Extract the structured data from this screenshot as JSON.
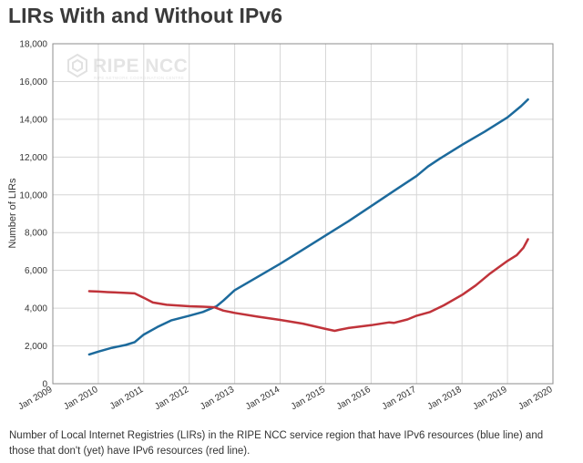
{
  "title": "LIRs With and Without IPv6",
  "caption": "Number of Local Internet Registries (LIRs) in the RIPE NCC service region that have IPv6 resources (blue line) and those that don't (yet) have IPv6 resources (red line).",
  "watermark": {
    "name": "RIPE NCC",
    "tagline": "RIPE NETWORK COORDINATION CENTRE"
  },
  "chart_data": {
    "type": "line",
    "ylabel": "Number of LIRs",
    "xlabel": "",
    "ylim": [
      0,
      18000
    ],
    "yticks": [
      0,
      2000,
      4000,
      6000,
      8000,
      10000,
      12000,
      14000,
      16000,
      18000
    ],
    "ytick_labels": [
      "0",
      "2,000",
      "4,000",
      "6,000",
      "8,000",
      "10,000",
      "12,000",
      "14,000",
      "16,000",
      "18,000"
    ],
    "xlim": [
      2009,
      2020
    ],
    "xticks": [
      2009,
      2010,
      2011,
      2012,
      2013,
      2014,
      2015,
      2016,
      2017,
      2018,
      2019,
      2020
    ],
    "xtick_labels": [
      "Jan 2009",
      "Jan 2010",
      "Jan 2011",
      "Jan 2012",
      "Jan 2013",
      "Jan 2014",
      "Jan 2015",
      "Jan 2016",
      "Jan 2017",
      "Jan 2018",
      "Jan 2019",
      "Jan 2020"
    ],
    "grid": {
      "x": true,
      "y": true
    },
    "series": [
      {
        "color": "#1c6a9c",
        "points": [
          [
            2009.8,
            1550
          ],
          [
            2010.0,
            1700
          ],
          [
            2010.3,
            1900
          ],
          [
            2010.6,
            2050
          ],
          [
            2010.8,
            2200
          ],
          [
            2011.0,
            2600
          ],
          [
            2011.3,
            3000
          ],
          [
            2011.6,
            3350
          ],
          [
            2012.0,
            3600
          ],
          [
            2012.3,
            3800
          ],
          [
            2012.6,
            4100
          ],
          [
            2012.75,
            4400
          ],
          [
            2013.0,
            4950
          ],
          [
            2013.5,
            5650
          ],
          [
            2014.0,
            6350
          ],
          [
            2014.5,
            7100
          ],
          [
            2015.0,
            7850
          ],
          [
            2015.5,
            8600
          ],
          [
            2016.0,
            9400
          ],
          [
            2016.5,
            10200
          ],
          [
            2017.0,
            11000
          ],
          [
            2017.25,
            11500
          ],
          [
            2017.5,
            11900
          ],
          [
            2018.0,
            12650
          ],
          [
            2018.5,
            13350
          ],
          [
            2019.0,
            14100
          ],
          [
            2019.3,
            14700
          ],
          [
            2019.45,
            15050
          ]
        ]
      },
      {
        "color": "#c0333a",
        "points": [
          [
            2009.8,
            4900
          ],
          [
            2010.0,
            4880
          ],
          [
            2010.2,
            4850
          ],
          [
            2010.5,
            4820
          ],
          [
            2010.8,
            4780
          ],
          [
            2011.0,
            4550
          ],
          [
            2011.2,
            4300
          ],
          [
            2011.5,
            4180
          ],
          [
            2012.0,
            4100
          ],
          [
            2012.3,
            4080
          ],
          [
            2012.55,
            4050
          ],
          [
            2012.75,
            3870
          ],
          [
            2013.0,
            3750
          ],
          [
            2013.5,
            3550
          ],
          [
            2014.0,
            3380
          ],
          [
            2014.5,
            3180
          ],
          [
            2015.0,
            2900
          ],
          [
            2015.2,
            2800
          ],
          [
            2015.3,
            2850
          ],
          [
            2015.5,
            2950
          ],
          [
            2016.0,
            3100
          ],
          [
            2016.4,
            3250
          ],
          [
            2016.5,
            3220
          ],
          [
            2016.8,
            3400
          ],
          [
            2017.0,
            3600
          ],
          [
            2017.3,
            3800
          ],
          [
            2017.6,
            4150
          ],
          [
            2018.0,
            4700
          ],
          [
            2018.3,
            5200
          ],
          [
            2018.6,
            5800
          ],
          [
            2019.0,
            6500
          ],
          [
            2019.2,
            6800
          ],
          [
            2019.35,
            7200
          ],
          [
            2019.45,
            7650
          ]
        ]
      }
    ]
  }
}
